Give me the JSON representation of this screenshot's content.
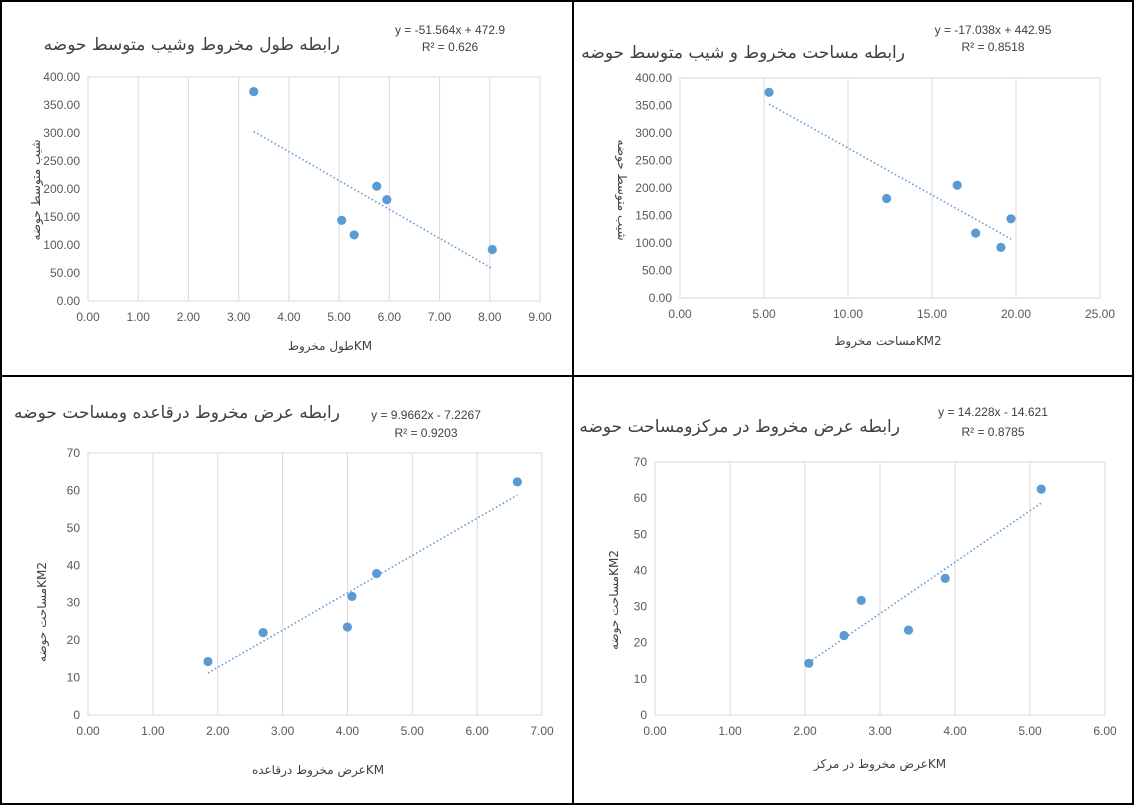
{
  "chart_data": [
    {
      "type": "scatter",
      "title": "رابطه طول مخروط وشیب متوسط حوضه",
      "equation": "y = -51.564x + 472.9",
      "r_squared": "R² = 0.626",
      "xlabel": "طول مخروطKM",
      "ylabel": "شیب متوسط حوضه",
      "xlim": [
        0,
        9
      ],
      "ylim": [
        0,
        400
      ],
      "x_ticks": [
        "0.00",
        "1.00",
        "2.00",
        "3.00",
        "4.00",
        "5.00",
        "6.00",
        "7.00",
        "8.00",
        "9.00"
      ],
      "y_ticks": [
        "0.00",
        "50.00",
        "100.00",
        "150.00",
        "200.00",
        "250.00",
        "300.00",
        "350.00",
        "400.00"
      ],
      "grid": "vertical",
      "points": [
        {
          "x": 3.3,
          "y": 374
        },
        {
          "x": 5.05,
          "y": 144
        },
        {
          "x": 5.3,
          "y": 118
        },
        {
          "x": 5.75,
          "y": 205
        },
        {
          "x": 5.95,
          "y": 181
        },
        {
          "x": 8.05,
          "y": 92
        }
      ],
      "trendline": {
        "slope": -51.564,
        "intercept": 472.9,
        "x_from": 3.3,
        "x_to": 8.05
      }
    },
    {
      "type": "scatter",
      "title": "رابطه مساحت مخروط و شیب متوسط حوضه",
      "equation": "y = -17.038x + 442.95",
      "r_squared": "R² = 0.8518",
      "xlabel": "مساحت مخروطKM2",
      "ylabel": "شیب متوسط حوضه",
      "xlim": [
        0,
        25
      ],
      "ylim": [
        0,
        400
      ],
      "x_ticks": [
        "0.00",
        "5.00",
        "10.00",
        "15.00",
        "20.00",
        "25.00"
      ],
      "y_ticks": [
        "0.00",
        "50.00",
        "100.00",
        "150.00",
        "200.00",
        "250.00",
        "300.00",
        "350.00",
        "400.00"
      ],
      "grid": "vertical",
      "points": [
        {
          "x": 5.3,
          "y": 374
        },
        {
          "x": 12.3,
          "y": 181
        },
        {
          "x": 16.5,
          "y": 205
        },
        {
          "x": 17.6,
          "y": 118
        },
        {
          "x": 19.1,
          "y": 92
        },
        {
          "x": 19.7,
          "y": 144
        }
      ],
      "trendline": {
        "slope": -17.038,
        "intercept": 442.95,
        "x_from": 5.3,
        "x_to": 19.7
      }
    },
    {
      "type": "scatter",
      "title": "رابطه عرض مخروط درقاعده ومساحت حوضه",
      "equation": "y = 9.9662x - 7.2267",
      "r_squared": "R² = 0.9203",
      "xlabel": "عرض مخروط درقاعدهKM",
      "ylabel": "مساحت حوضهKM2",
      "xlim": [
        0,
        7
      ],
      "ylim": [
        0,
        70
      ],
      "x_ticks": [
        "0.00",
        "1.00",
        "2.00",
        "3.00",
        "4.00",
        "5.00",
        "6.00",
        "7.00"
      ],
      "y_ticks": [
        "0",
        "10",
        "20",
        "30",
        "40",
        "50",
        "60",
        "70"
      ],
      "grid": "vertical",
      "points": [
        {
          "x": 1.85,
          "y": 14.3
        },
        {
          "x": 2.7,
          "y": 22
        },
        {
          "x": 4.0,
          "y": 23.5
        },
        {
          "x": 4.07,
          "y": 31.7
        },
        {
          "x": 4.45,
          "y": 37.8
        },
        {
          "x": 6.62,
          "y": 62.3
        }
      ],
      "trendline": {
        "slope": 9.9662,
        "intercept": -7.2267,
        "x_from": 1.85,
        "x_to": 6.62
      }
    },
    {
      "type": "scatter",
      "title": "رابطه عرض مخروط در مرکزومساحت حوضه",
      "equation": "y = 14.228x - 14.621",
      "r_squared": "R² = 0.8785",
      "xlabel": "عرض مخروط در مرکزKM",
      "ylabel": "مساحت حوضهKM2",
      "xlim": [
        0,
        6
      ],
      "ylim": [
        0,
        70
      ],
      "x_ticks": [
        "0.00",
        "1.00",
        "2.00",
        "3.00",
        "4.00",
        "5.00",
        "6.00"
      ],
      "y_ticks": [
        "0",
        "10",
        "20",
        "30",
        "40",
        "50",
        "60",
        "70"
      ],
      "grid": "vertical",
      "points": [
        {
          "x": 2.05,
          "y": 14.3
        },
        {
          "x": 2.52,
          "y": 22
        },
        {
          "x": 2.75,
          "y": 31.7
        },
        {
          "x": 3.38,
          "y": 23.5
        },
        {
          "x": 3.87,
          "y": 37.8
        },
        {
          "x": 5.15,
          "y": 62.5
        }
      ],
      "trendline": {
        "slope": 14.228,
        "intercept": -14.621,
        "x_from": 2.05,
        "x_to": 5.15
      }
    }
  ]
}
